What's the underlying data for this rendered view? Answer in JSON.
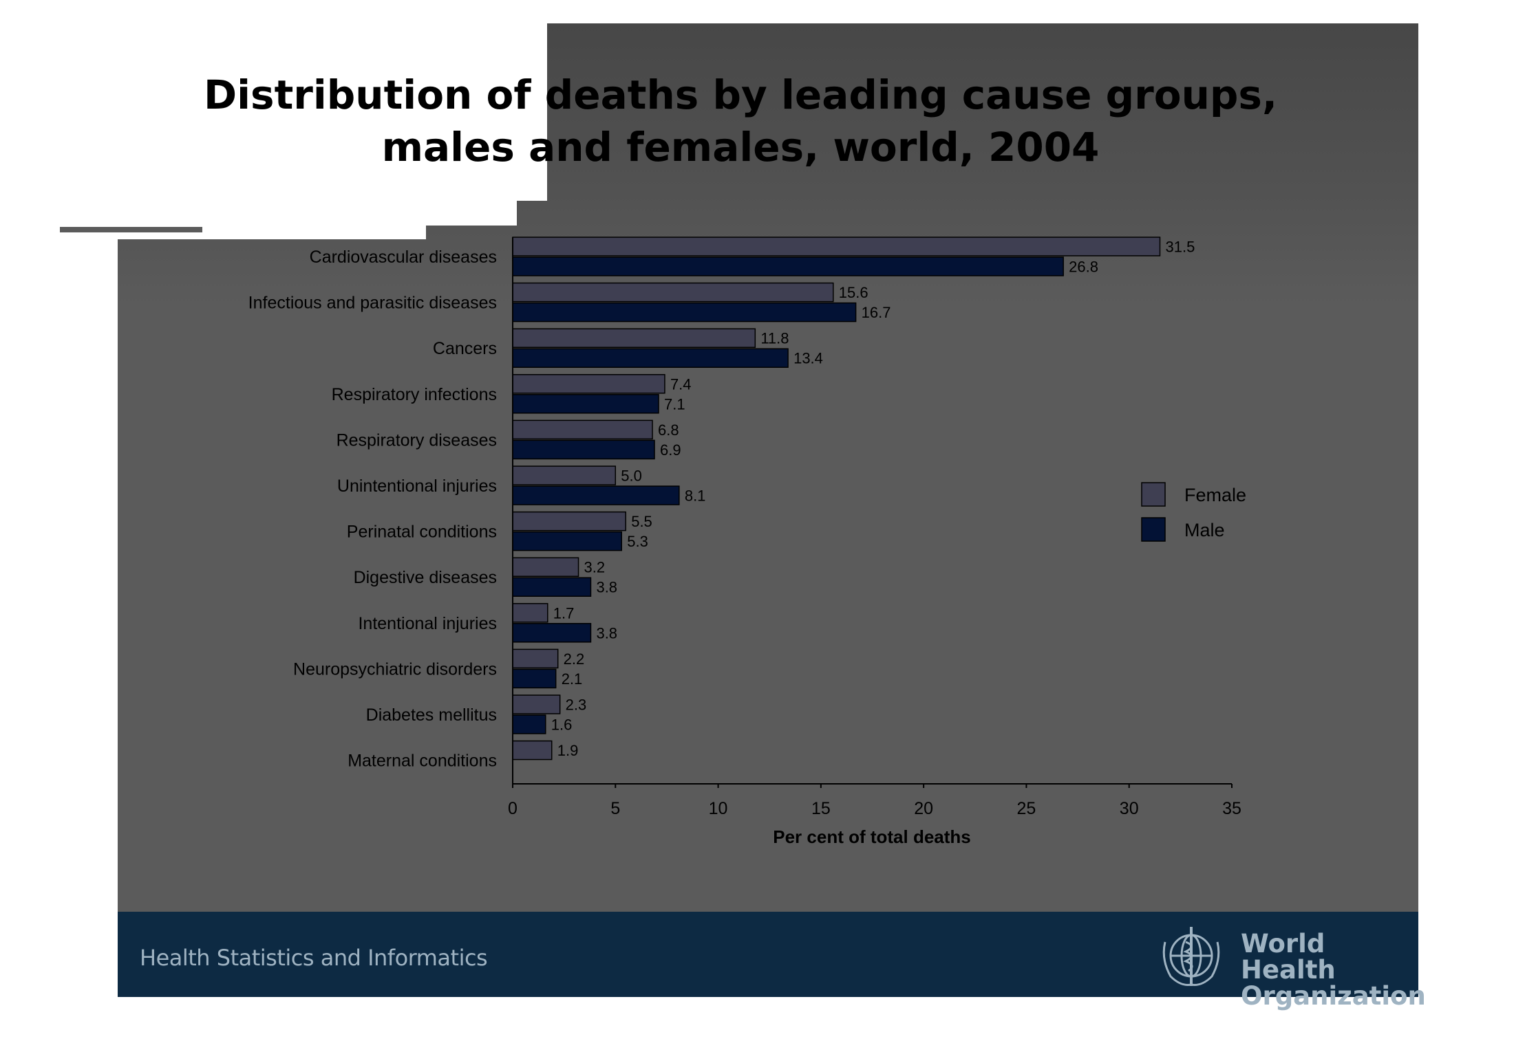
{
  "slide": {
    "title": "Distribution of deaths by leading cause groups,\nmales and females, world, 2004",
    "footer_text": "Health Statistics and Informatics",
    "org_name": "World Health\nOrganization",
    "colors": {
      "slide_bg": "#5b5b5b",
      "footer_bg": "#0d2a43",
      "female": "#3f3f52",
      "male": "#031235"
    }
  },
  "chart_data": {
    "type": "bar",
    "orientation": "horizontal",
    "categories": [
      "Cardiovascular diseases",
      "Infectious and parasitic diseases",
      "Cancers",
      "Respiratory infections",
      "Respiratory diseases",
      "Unintentional injuries",
      "Perinatal conditions",
      "Digestive diseases",
      "Intentional injuries",
      "Neuropsychiatric disorders",
      "Diabetes mellitus",
      "Maternal conditions"
    ],
    "series": [
      {
        "name": "Female",
        "color": "#3f3f52",
        "values": [
          31.5,
          15.6,
          11.8,
          7.4,
          6.8,
          5.0,
          5.5,
          3.2,
          1.7,
          2.2,
          2.3,
          1.9
        ],
        "labels": [
          "31.5",
          "15.6",
          "11.8",
          "7.4",
          "6.8",
          "5.0",
          "5.5",
          "3.2",
          "1.7",
          "2.2",
          "2.3",
          "1.9"
        ]
      },
      {
        "name": "Male",
        "color": "#031235",
        "values": [
          26.8,
          16.7,
          13.4,
          7.1,
          6.9,
          8.1,
          5.3,
          3.8,
          3.8,
          2.1,
          1.6,
          null
        ],
        "labels": [
          "26.8",
          "16.7",
          "13.4",
          "7.1",
          "6.9",
          "8.1",
          "5.3",
          "3.8",
          "3.8",
          "2.1",
          "1.6",
          ""
        ]
      }
    ],
    "xlabel": "Per cent of total deaths",
    "xlim": [
      0,
      35
    ],
    "xticks": [
      "0",
      "5",
      "10",
      "15",
      "20",
      "25",
      "30",
      "35"
    ],
    "grid": false,
    "legend_position": "right"
  }
}
